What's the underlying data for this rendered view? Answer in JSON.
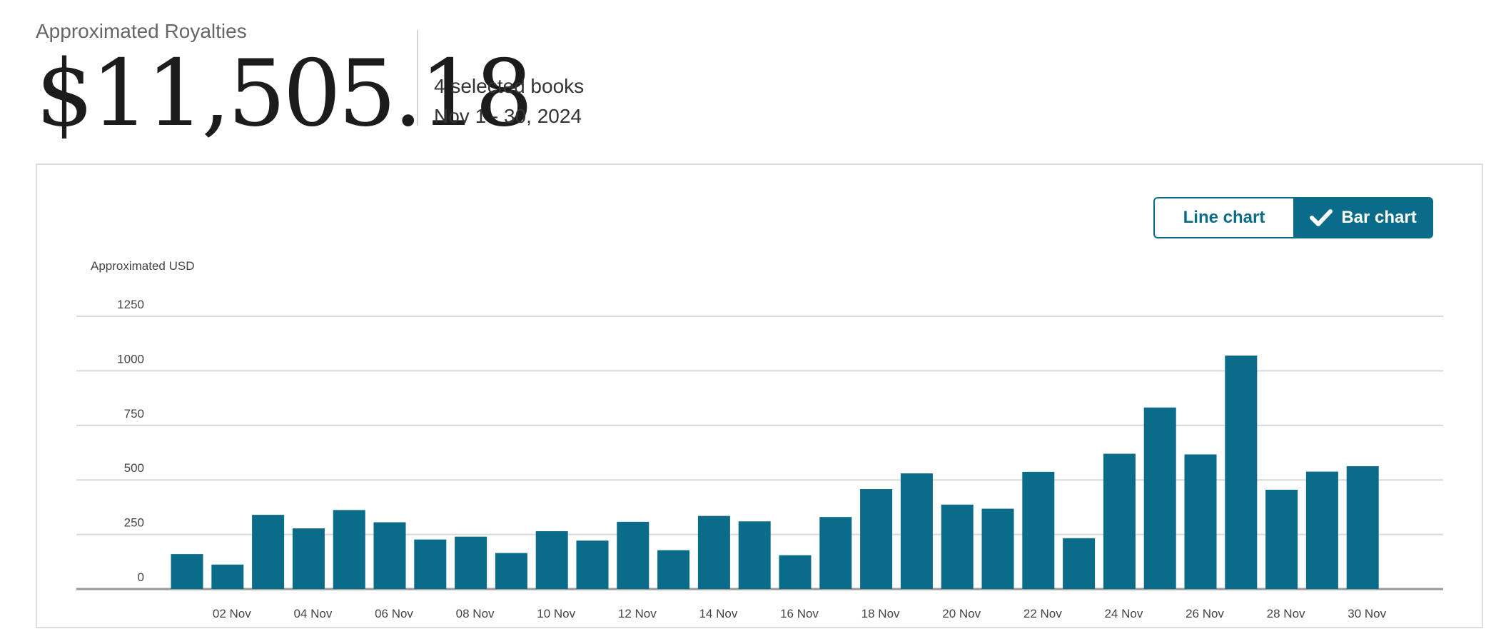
{
  "summary": {
    "label": "Approximated Royalties",
    "amount": "$11,505.18",
    "books": "4 selected books",
    "period": "Nov 1 - 30, 2024"
  },
  "toggle": {
    "line_label": "Line chart",
    "bar_label": "Bar chart",
    "selected": "bar"
  },
  "colors": {
    "accent": "#0b6c8a",
    "grid": "#d9d9d9",
    "axis_text": "#444444"
  },
  "chart_data": {
    "type": "bar",
    "title": "",
    "xlabel": "",
    "ylabel": "Approximated USD",
    "ylim": [
      0,
      1250
    ],
    "yticks": [
      0,
      250,
      500,
      750,
      1000,
      1250
    ],
    "grid": true,
    "categories": [
      "01 Nov",
      "02 Nov",
      "03 Nov",
      "04 Nov",
      "05 Nov",
      "06 Nov",
      "07 Nov",
      "08 Nov",
      "09 Nov",
      "10 Nov",
      "11 Nov",
      "12 Nov",
      "13 Nov",
      "14 Nov",
      "15 Nov",
      "16 Nov",
      "17 Nov",
      "18 Nov",
      "19 Nov",
      "20 Nov",
      "21 Nov",
      "22 Nov",
      "23 Nov",
      "24 Nov",
      "25 Nov",
      "26 Nov",
      "27 Nov",
      "28 Nov",
      "29 Nov",
      "30 Nov"
    ],
    "xtick_labels": [
      "02 Nov",
      "04 Nov",
      "06 Nov",
      "08 Nov",
      "10 Nov",
      "12 Nov",
      "14 Nov",
      "16 Nov",
      "18 Nov",
      "20 Nov",
      "22 Nov",
      "24 Nov",
      "26 Nov",
      "28 Nov",
      "30 Nov"
    ],
    "series": [
      {
        "values": [
          160,
          112,
          340,
          278,
          362,
          306,
          227,
          240,
          165,
          265,
          222,
          308,
          178,
          335,
          310,
          155,
          330,
          458,
          530,
          387,
          368,
          537,
          233,
          620,
          832,
          617,
          1070,
          455,
          538,
          563
        ]
      }
    ]
  }
}
